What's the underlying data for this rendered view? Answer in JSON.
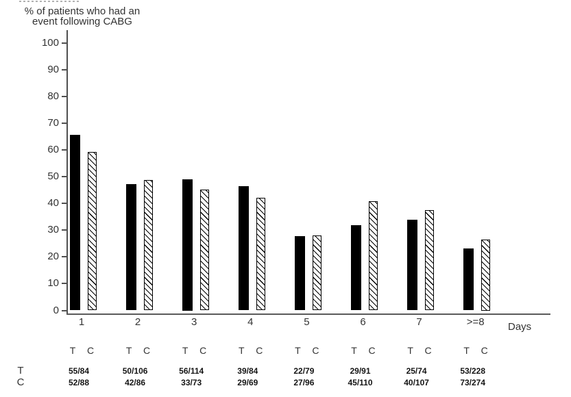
{
  "title": {
    "line1": "% of patients who had an",
    "line2": "event following CABG"
  },
  "chart_data": {
    "type": "bar",
    "title": "% of patients who had an event following CABG",
    "xlabel": "Days",
    "ylabel": "% of patients who had an event following CABG",
    "ylim": [
      0,
      100
    ],
    "yticks": [
      0,
      10,
      20,
      30,
      40,
      50,
      60,
      70,
      80,
      90,
      100
    ],
    "grid": false,
    "legend_position": "none",
    "categories": [
      "1",
      "2",
      "3",
      "4",
      "5",
      "6",
      "7",
      ">=8"
    ],
    "series": [
      {
        "name": "T",
        "appearance": "solid-black",
        "values": [
          65.5,
          47.2,
          49.1,
          46.4,
          27.8,
          31.9,
          33.8,
          23.2
        ],
        "fractions": [
          "55/84",
          "50/106",
          "56/114",
          "39/84",
          "22/79",
          "29/91",
          "25/74",
          "53/228"
        ]
      },
      {
        "name": "C",
        "appearance": "white-diagonal-hatch",
        "values": [
          59.1,
          48.8,
          45.2,
          42.0,
          28.1,
          40.9,
          37.4,
          26.6
        ],
        "fractions": [
          "52/88",
          "42/86",
          "33/73",
          "29/69",
          "27/96",
          "45/110",
          "40/107",
          "73/274"
        ]
      }
    ]
  },
  "table": {
    "row_labels": [
      "T",
      "C"
    ]
  },
  "colors": {
    "bar_fill": "#000000",
    "axis": "#4f4f4f",
    "text": "#333333"
  }
}
